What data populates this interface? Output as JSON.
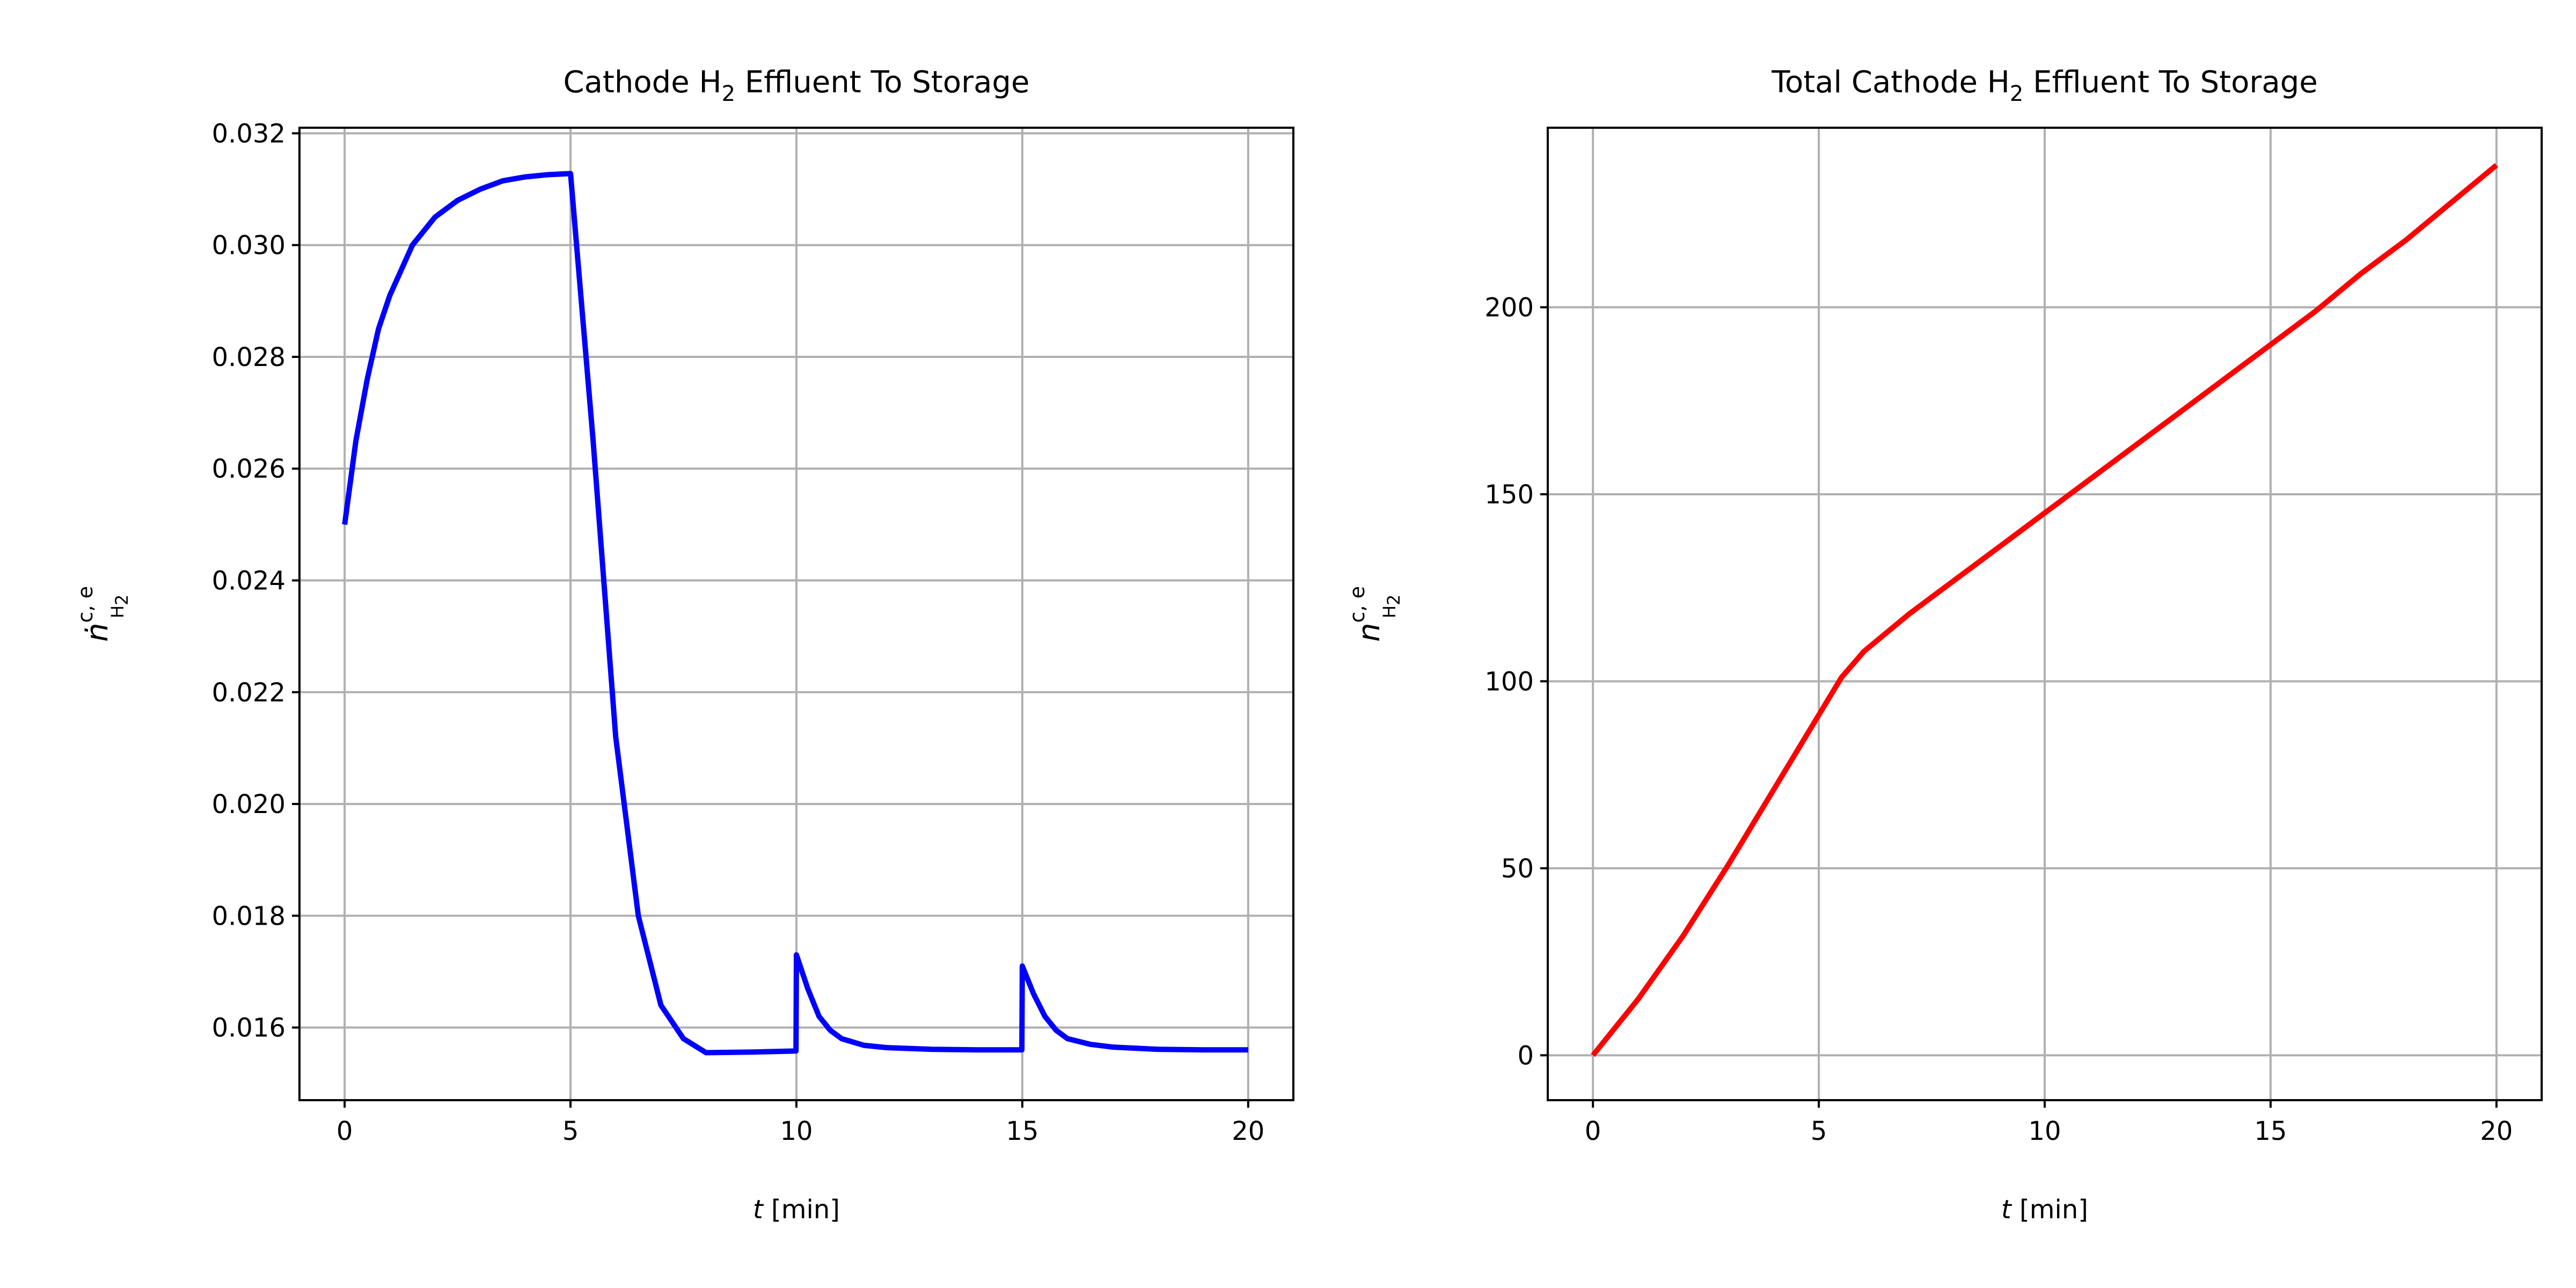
{
  "chart_data": [
    {
      "type": "line",
      "title": {
        "prefix": "Cathode H",
        "subscript": "2",
        "suffix": " Effluent To Storage"
      },
      "xlabel": {
        "var": "t",
        "unit": " [min]"
      },
      "ylabel": {
        "base": "ṅ",
        "superscript": "c, e",
        "subscript": "H",
        "subscript2": "2"
      },
      "xlim": [
        -1,
        21
      ],
      "ylim": [
        0.0147,
        0.0321
      ],
      "xticks": [
        0,
        5,
        10,
        15,
        20
      ],
      "yticks": [
        0.016,
        0.018,
        0.02,
        0.022,
        0.024,
        0.026,
        0.028,
        0.03,
        0.032
      ],
      "xtick_labels": [
        "0",
        "5",
        "10",
        "15",
        "20"
      ],
      "ytick_labels": [
        "0.016",
        "0.018",
        "0.020",
        "0.022",
        "0.024",
        "0.026",
        "0.028",
        "0.030",
        "0.032"
      ],
      "grid": true,
      "series": [
        {
          "color": "#0000ff",
          "x": [
            0,
            0.25,
            0.5,
            0.75,
            1.0,
            1.5,
            2.0,
            2.5,
            3.0,
            3.5,
            4.0,
            4.5,
            5.0,
            5.5,
            6.0,
            6.5,
            7.0,
            7.5,
            8.0,
            9.0,
            9.99,
            10.0,
            10.25,
            10.5,
            10.75,
            11.0,
            11.5,
            12.0,
            13.0,
            14.0,
            14.99,
            15.0,
            15.25,
            15.5,
            15.75,
            16.0,
            16.5,
            17.0,
            18.0,
            19.0,
            20.0
          ],
          "y": [
            0.025,
            0.0265,
            0.0276,
            0.0285,
            0.0291,
            0.03,
            0.0305,
            0.0308,
            0.031,
            0.03115,
            0.03122,
            0.03126,
            0.03128,
            0.0265,
            0.0212,
            0.018,
            0.0164,
            0.0158,
            0.01555,
            0.01556,
            0.01558,
            0.0173,
            0.0167,
            0.0162,
            0.01595,
            0.0158,
            0.01568,
            0.01564,
            0.01561,
            0.0156,
            0.0156,
            0.0171,
            0.0166,
            0.0162,
            0.01595,
            0.0158,
            0.0157,
            0.01565,
            0.01561,
            0.0156,
            0.0156
          ]
        }
      ]
    },
    {
      "type": "line",
      "title": {
        "prefix": "Total Cathode H",
        "subscript": "2",
        "suffix": " Effluent To Storage"
      },
      "xlabel": {
        "var": "t",
        "unit": " [min]"
      },
      "ylabel": {
        "base": "n",
        "superscript": "c, e",
        "subscript": "H",
        "subscript2": "2"
      },
      "xlim": [
        -1,
        21
      ],
      "ylim": [
        -12,
        248
      ],
      "xticks": [
        0,
        5,
        10,
        15,
        20
      ],
      "yticks": [
        0,
        50,
        100,
        150,
        200
      ],
      "xtick_labels": [
        "0",
        "5",
        "10",
        "15",
        "20"
      ],
      "ytick_labels": [
        "0",
        "50",
        "100",
        "150",
        "200"
      ],
      "grid": true,
      "series": [
        {
          "color": "#ff0000",
          "x": [
            0,
            1,
            2,
            3,
            4,
            5,
            5.5,
            6,
            7,
            8,
            9,
            10,
            11,
            12,
            13,
            14,
            15,
            16,
            17,
            18,
            19,
            20
          ],
          "y": [
            0,
            15,
            32,
            51,
            71,
            91,
            101,
            108,
            118,
            127,
            136,
            145,
            154,
            163,
            172,
            181,
            190,
            199,
            209,
            218,
            228,
            238
          ]
        }
      ]
    }
  ]
}
